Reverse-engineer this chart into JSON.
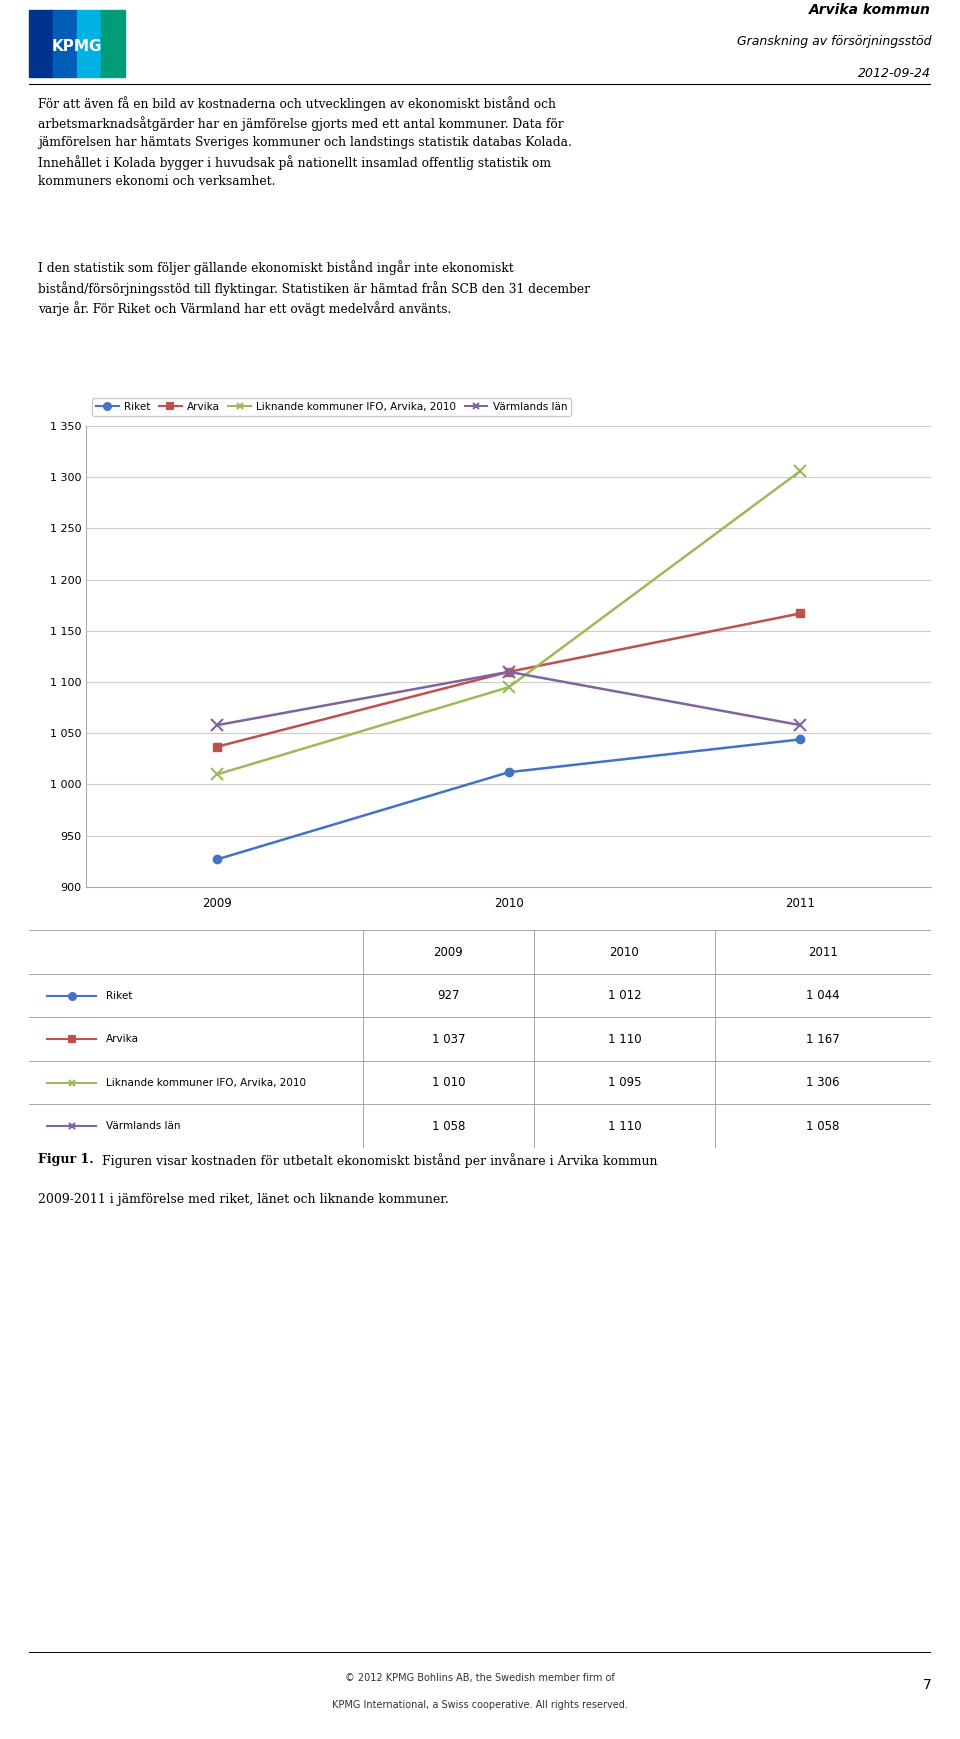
{
  "title_right_line1": "Arvika kommun",
  "title_right_line2": "Granskning av försörjningsstöd",
  "title_right_line3": "2012-09-24",
  "paragraph1": "För att även få en bild av kostnaderna och utvecklingen av ekonomiskt bistånd och\narbetsmarknadsåtgärder har en jämförelse gjorts med ett antal kommuner. Data för\njämförelsen har hämtats Sveriges kommuner och landstings statistik databas Kolada.\nInnehållet i Kolada bygger i huvudsak på nationellt insamlad offentlig statistik om\nkommuners ekonomi och verksamhet.",
  "paragraph2": "I den statistik som följer gällande ekonomiskt bistånd ingår inte ekonomiskt\nbistånd/försörjningsstöd till flyktingar. Statistiken är hämtad från SCB den 31 december\nvarje år. För Riket och Värmland har ett ovägt medelvård använts.",
  "years": [
    2009,
    2010,
    2011
  ],
  "series": [
    {
      "name": "Riket",
      "values": [
        927,
        1012,
        1044
      ],
      "color": "#4472C4",
      "marker": "o",
      "linestyle": "-"
    },
    {
      "name": "Arvika",
      "values": [
        1037,
        1110,
        1167
      ],
      "color": "#C0504D",
      "marker": "s",
      "linestyle": "-"
    },
    {
      "name": "Liknande kommuner IFO, Arvika, 2010",
      "values": [
        1010,
        1095,
        1306
      ],
      "color": "#9BBB59",
      "marker": "x",
      "linestyle": "-"
    },
    {
      "name": "Värmlands län",
      "values": [
        1058,
        1110,
        1058
      ],
      "color": "#8064A2",
      "marker": "x",
      "linestyle": "-"
    }
  ],
  "ylim": [
    900,
    1350
  ],
  "yticks": [
    900,
    950,
    1000,
    1050,
    1100,
    1150,
    1200,
    1250,
    1300,
    1350
  ],
  "footer_text1": "© 2012 KPMG Bohlins AB, the Swedish member firm of",
  "footer_text2": "KPMG International, a Swiss cooperative. All rights reserved.",
  "page_number": "7",
  "background_color": "#FFFFFF"
}
